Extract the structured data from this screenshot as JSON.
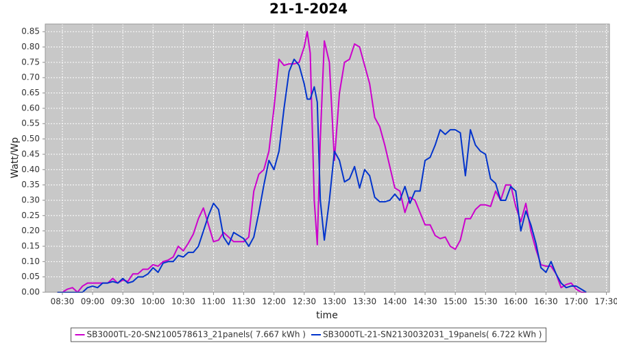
{
  "chart_data": {
    "type": "line",
    "title": "21-1-2024",
    "x_label": "time",
    "y_label": "Watt/Wp",
    "x": [
      "08:25",
      "08:30",
      "08:35",
      "08:40",
      "08:45",
      "08:50",
      "08:55",
      "09:00",
      "09:05",
      "09:10",
      "09:15",
      "09:20",
      "09:25",
      "09:30",
      "09:35",
      "09:40",
      "09:45",
      "09:50",
      "09:55",
      "10:00",
      "10:05",
      "10:10",
      "10:15",
      "10:20",
      "10:25",
      "10:30",
      "10:35",
      "10:40",
      "10:45",
      "10:50",
      "10:55",
      "11:00",
      "11:05",
      "11:10",
      "11:15",
      "11:20",
      "11:25",
      "11:30",
      "11:35",
      "11:40",
      "11:45",
      "11:50",
      "11:55",
      "12:00",
      "12:05",
      "12:10",
      "12:15",
      "12:20",
      "12:25",
      "12:30",
      "12:33",
      "12:36",
      "12:40",
      "12:43",
      "12:46",
      "12:50",
      "12:55",
      "13:00",
      "13:05",
      "13:10",
      "13:15",
      "13:20",
      "13:25",
      "13:30",
      "13:35",
      "13:40",
      "13:45",
      "13:50",
      "13:55",
      "14:00",
      "14:05",
      "14:10",
      "14:15",
      "14:20",
      "14:25",
      "14:30",
      "14:35",
      "14:40",
      "14:45",
      "14:50",
      "14:55",
      "15:00",
      "15:05",
      "15:10",
      "15:15",
      "15:20",
      "15:25",
      "15:30",
      "15:35",
      "15:40",
      "15:45",
      "15:50",
      "15:55",
      "16:00",
      "16:05",
      "16:10",
      "16:15",
      "16:20",
      "16:25",
      "16:30",
      "16:35",
      "16:40",
      "16:45",
      "16:50",
      "16:55",
      "17:00",
      "17:05",
      "17:10"
    ],
    "series": [
      {
        "name": "SB3000TL-20-SN2100578613_21panels( 7.667 kWh )",
        "color": "#cc00cc",
        "values": [
          0,
          0,
          0.01,
          0.015,
          0,
          0.02,
          0.03,
          0.03,
          0.03,
          0.03,
          0.03,
          0.045,
          0.03,
          0.04,
          0.035,
          0.06,
          0.06,
          0.075,
          0.075,
          0.09,
          0.085,
          0.1,
          0.105,
          0.115,
          0.15,
          0.135,
          0.16,
          0.19,
          0.24,
          0.275,
          0.22,
          0.165,
          0.17,
          0.195,
          0.18,
          0.165,
          0.165,
          0.165,
          0.18,
          0.33,
          0.385,
          0.4,
          0.46,
          0.6,
          0.76,
          0.74,
          0.745,
          0.745,
          0.75,
          0.8,
          0.85,
          0.78,
          0.3,
          0.155,
          0.5,
          0.82,
          0.75,
          0.43,
          0.65,
          0.75,
          0.76,
          0.81,
          0.8,
          0.74,
          0.68,
          0.57,
          0.54,
          0.48,
          0.41,
          0.34,
          0.33,
          0.26,
          0.31,
          0.3,
          0.26,
          0.22,
          0.22,
          0.185,
          0.175,
          0.18,
          0.15,
          0.14,
          0.17,
          0.24,
          0.24,
          0.27,
          0.285,
          0.285,
          0.28,
          0.33,
          0.3,
          0.35,
          0.35,
          0.28,
          0.23,
          0.29,
          0.2,
          0.14,
          0.09,
          0.085,
          0.085,
          0.06,
          0.015,
          0.025,
          0.03,
          0.01,
          0,
          0
        ]
      },
      {
        "name": "SB3000TL-21-SN2130032031_19panels( 6.722 kWh )",
        "color": "#0033cc",
        "values": [
          0,
          0,
          0,
          0,
          0,
          0,
          0.015,
          0.02,
          0.015,
          0.03,
          0.03,
          0.035,
          0.03,
          0.045,
          0.03,
          0.035,
          0.05,
          0.05,
          0.06,
          0.08,
          0.065,
          0.095,
          0.1,
          0.1,
          0.12,
          0.115,
          0.13,
          0.13,
          0.15,
          0.2,
          0.25,
          0.29,
          0.27,
          0.18,
          0.155,
          0.195,
          0.185,
          0.175,
          0.15,
          0.18,
          0.26,
          0.35,
          0.43,
          0.4,
          0.46,
          0.6,
          0.72,
          0.76,
          0.74,
          0.68,
          0.63,
          0.63,
          0.67,
          0.62,
          0.3,
          0.17,
          0.3,
          0.46,
          0.43,
          0.36,
          0.37,
          0.41,
          0.34,
          0.4,
          0.38,
          0.31,
          0.295,
          0.295,
          0.3,
          0.32,
          0.3,
          0.345,
          0.29,
          0.33,
          0.33,
          0.43,
          0.44,
          0.48,
          0.53,
          0.515,
          0.53,
          0.53,
          0.52,
          0.38,
          0.53,
          0.48,
          0.46,
          0.45,
          0.37,
          0.355,
          0.3,
          0.3,
          0.345,
          0.33,
          0.2,
          0.265,
          0.22,
          0.16,
          0.08,
          0.065,
          0.1,
          0.06,
          0.03,
          0.015,
          0.02,
          0.02,
          0.01,
          0
        ]
      }
    ],
    "xlim": [
      "08:13",
      "17:33"
    ],
    "xticks": [
      "08:30",
      "09:00",
      "09:30",
      "10:00",
      "10:30",
      "11:00",
      "11:30",
      "12:00",
      "12:30",
      "13:00",
      "13:30",
      "14:00",
      "14:30",
      "15:00",
      "15:30",
      "16:00",
      "16:30",
      "17:00",
      "17:30"
    ],
    "ylim": [
      0,
      0.875
    ],
    "yticks": [
      {
        "value": 0,
        "label": "0.00"
      },
      {
        "value": 0.05,
        "label": "0.05"
      },
      {
        "value": 0.1,
        "label": "0.10"
      },
      {
        "value": 0.15,
        "label": "0.15"
      },
      {
        "value": 0.2,
        "label": "0.20"
      },
      {
        "value": 0.25,
        "label": "0.25"
      },
      {
        "value": 0.3,
        "label": "0.30"
      },
      {
        "value": 0.35,
        "label": "0.35"
      },
      {
        "value": 0.4,
        "label": "0.40"
      },
      {
        "value": 0.45,
        "label": "0.45"
      },
      {
        "value": 0.5,
        "label": "0.50"
      },
      {
        "value": 0.55,
        "label": "0.55"
      },
      {
        "value": 0.6,
        "label": "0.60"
      },
      {
        "value": 0.65,
        "label": "0.65"
      },
      {
        "value": 0.7,
        "label": "0.70"
      },
      {
        "value": 0.75,
        "label": "0.75"
      },
      {
        "value": 0.8,
        "label": "0.80"
      },
      {
        "value": 0.85,
        "label": "0.85"
      }
    ],
    "grid": true,
    "background": "#c8c8c8",
    "legend": "bottom"
  }
}
